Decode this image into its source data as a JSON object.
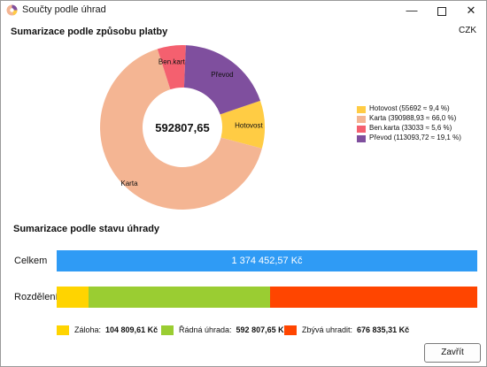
{
  "window": {
    "title": "Součty podle úhrad"
  },
  "payment_section": {
    "title": "Sumarizace podle způsobu platby",
    "currency": "CZK"
  },
  "chart_data": {
    "type": "pie",
    "center_label": "592807,65",
    "slices": [
      {
        "label": "Hotovost",
        "value": 55692,
        "percent": 9.4,
        "color": "#ffcc44",
        "legend": "Hotovost (55692 ≈ 9,4 %)"
      },
      {
        "label": "Karta",
        "value": 390988.93,
        "percent": 66.0,
        "color": "#f4b593",
        "legend": "Karta (390988,93 ≈ 66,0 %)"
      },
      {
        "label": "Ben.karta",
        "value": 33033,
        "percent": 5.6,
        "color": "#f4606f",
        "legend": "Ben.karta (33033 ≈ 5,6 %)"
      },
      {
        "label": "Převod",
        "value": 113093.72,
        "percent": 19.1,
        "color": "#7f4f9e",
        "legend": "Převod (113093,72 ≈ 19,1 %)"
      }
    ]
  },
  "status_section": {
    "title": "Sumarizace podle stavu úhrady",
    "total_label": "Celkem",
    "total_value": "1 374 452,57 Kč",
    "split_label": "Rozdělení",
    "segments": [
      {
        "label": "Záloha:",
        "value_text": "104 809,61 Kč",
        "value": 104809.61,
        "color": "#ffd400"
      },
      {
        "label": "Řádná úhrada:",
        "value_text": "592 807,65 Kč",
        "value": 592807.65,
        "color": "#9acd32"
      },
      {
        "label": "Zbývá uhradit:",
        "value_text": "676 835,31 Kč",
        "value": 676835.31,
        "color": "#ff4500"
      }
    ]
  },
  "footer": {
    "close_label": "Zavřít"
  }
}
